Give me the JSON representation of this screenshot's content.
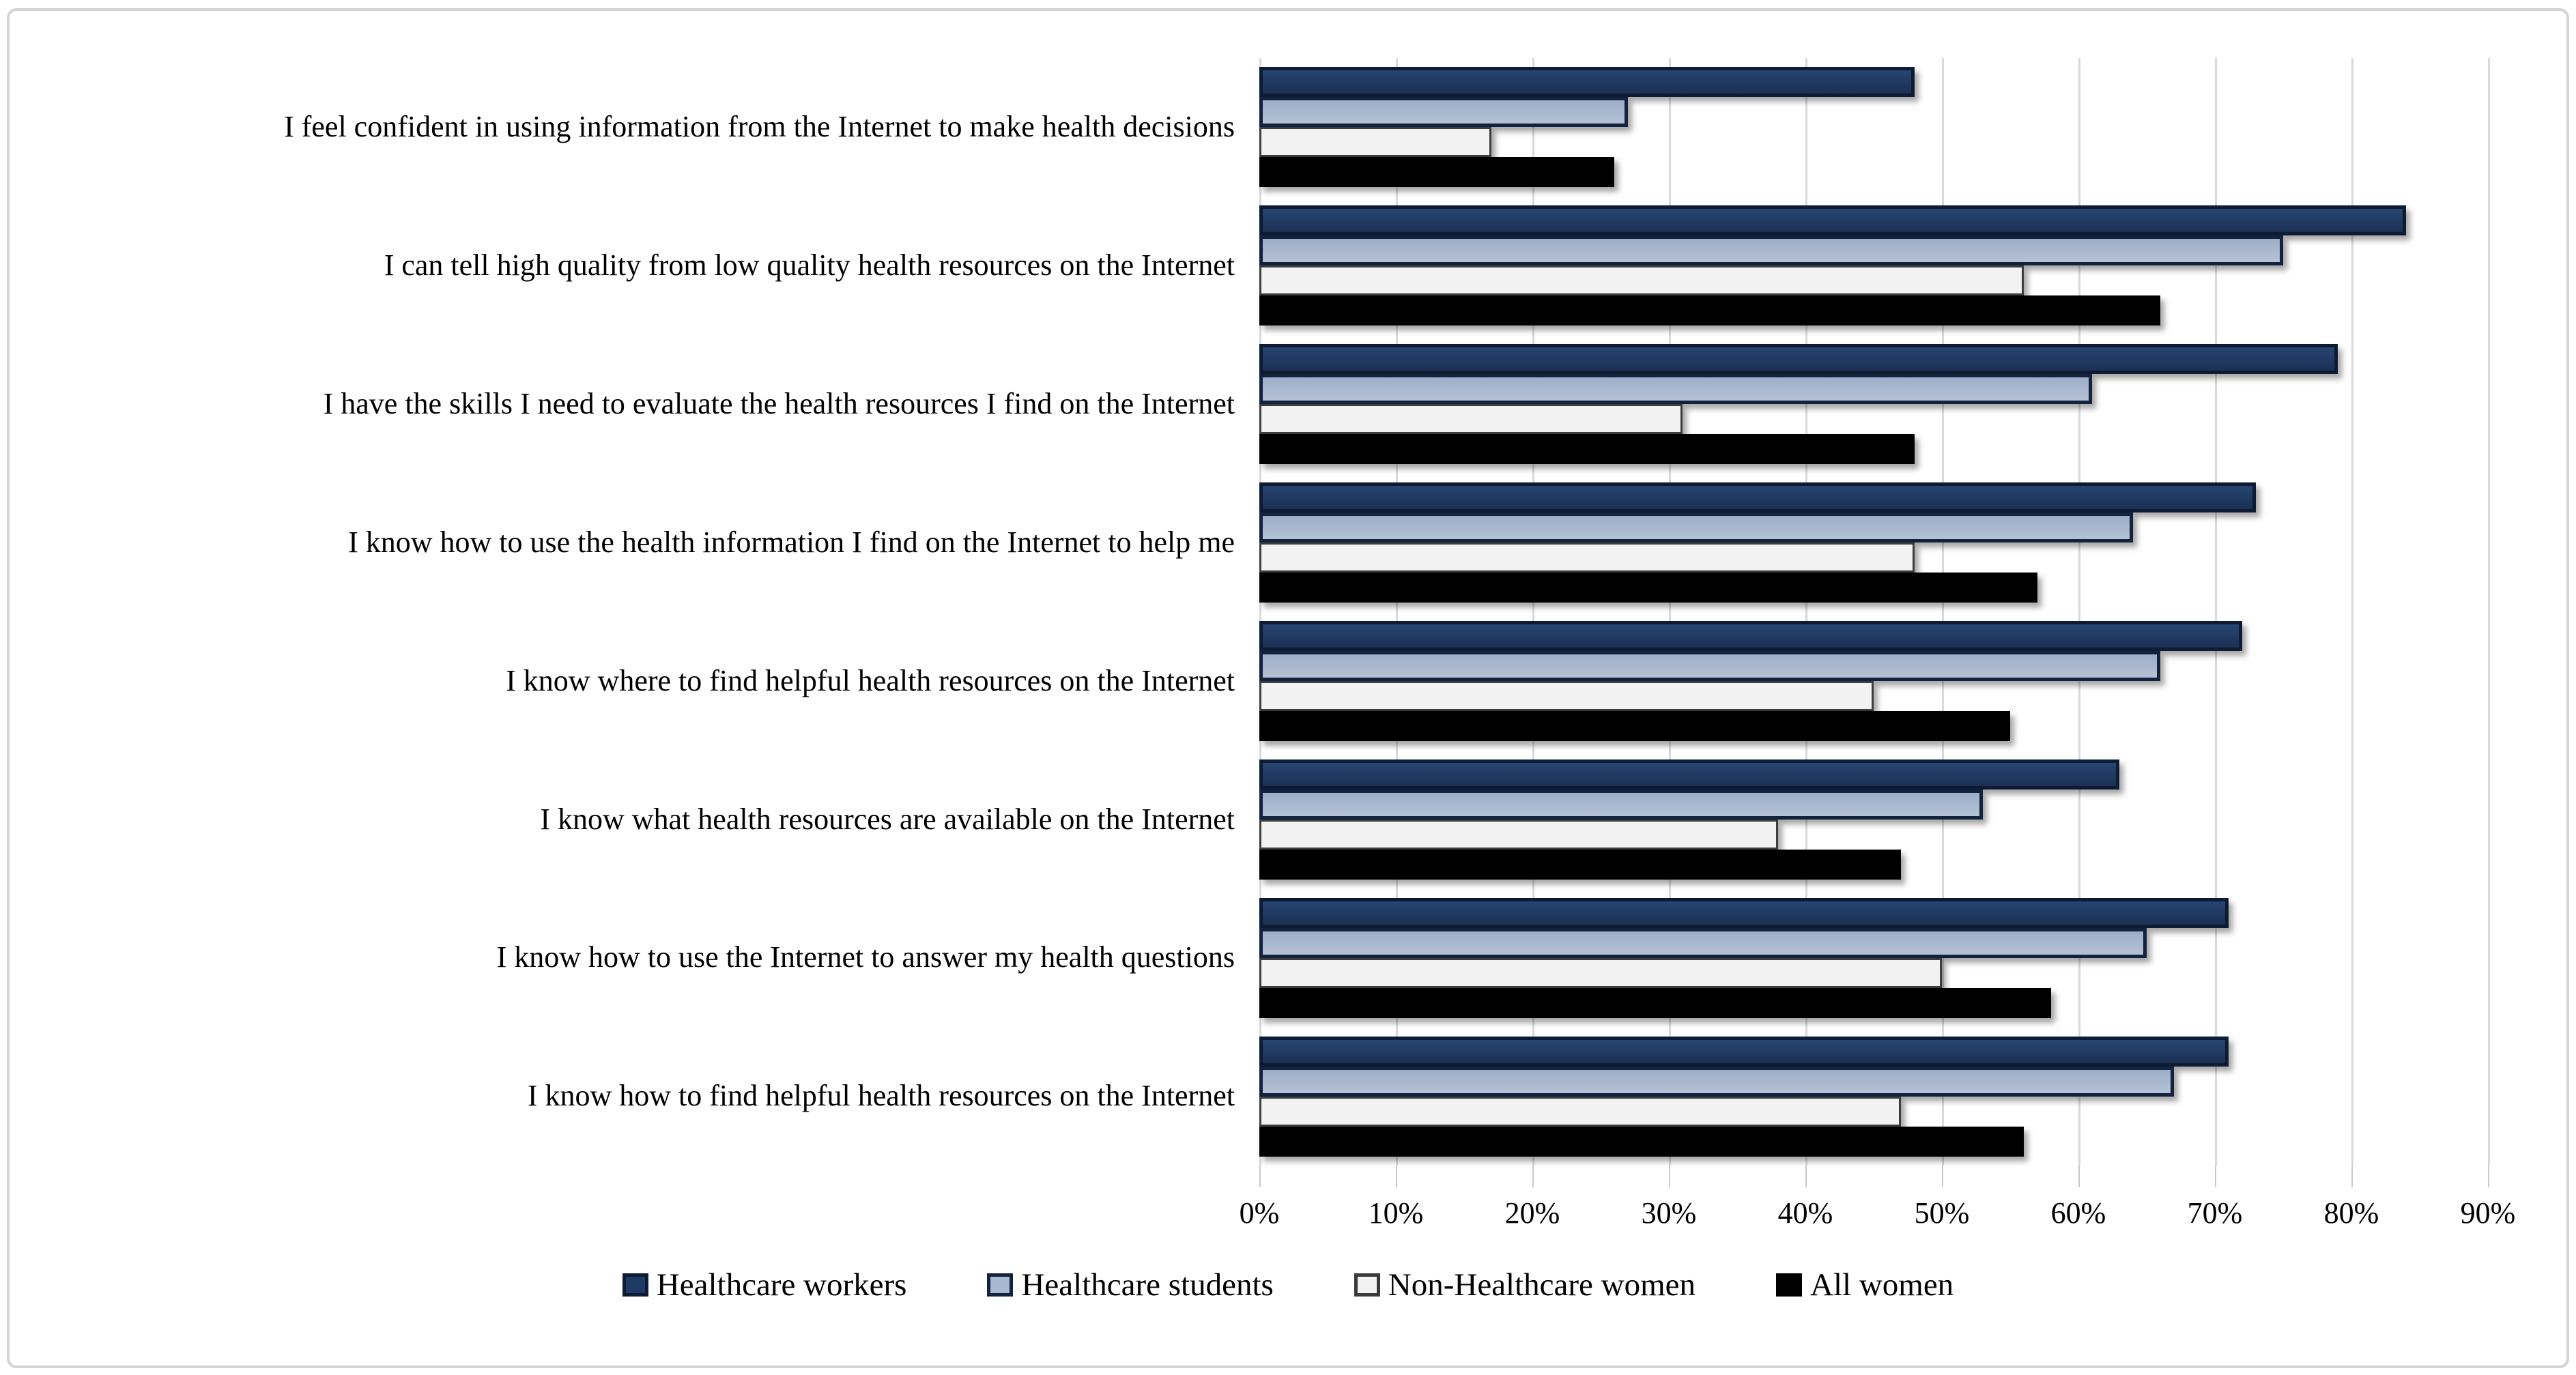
{
  "chart_data": {
    "type": "bar",
    "orientation": "horizontal",
    "title": "",
    "categories": [
      "I feel confident in using information from the Internet to make health decisions",
      "I can tell high quality from low quality health resources on the Internet",
      "I have the skills I need to evaluate the health resources I find on the Internet",
      "I know how to use the health information I find on the Internet to help me",
      "I know where to find helpful health resources on the Internet",
      "I know what health resources are available on the Internet",
      "I know how to use the Internet to answer my health questions",
      "I know how to find helpful health resources on the Internet"
    ],
    "series": [
      {
        "name": "Healthcare workers",
        "color": "#1F3A63",
        "border_color": "#0D1B33",
        "values": [
          48,
          84,
          79,
          73,
          72,
          63,
          71,
          71
        ]
      },
      {
        "name": "Healthcare students",
        "color": "#A9B8CE",
        "border_color": "#13233F",
        "values": [
          27,
          75,
          61,
          64,
          66,
          53,
          65,
          67
        ]
      },
      {
        "name": "Non-Healthcare women",
        "color": "#F2F2F2",
        "border_color": "#3D3D3D",
        "values": [
          17,
          56,
          31,
          48,
          45,
          38,
          50,
          47
        ]
      },
      {
        "name": "All women",
        "color": "#000000",
        "border_color": "#000000",
        "values": [
          26,
          66,
          48,
          57,
          55,
          47,
          58,
          56
        ]
      }
    ],
    "x_ticks": [
      "0%",
      "10%",
      "20%",
      "30%",
      "40%",
      "50%",
      "60%",
      "70%",
      "80%",
      "90%"
    ],
    "xlim": [
      0,
      90
    ],
    "x_tick_step": 10,
    "unit": "percent",
    "grid": "vertical gridlines on",
    "legend_position": "bottom",
    "gridline_color": "#D9D9D9",
    "frame_color": "#D4D4D4"
  }
}
